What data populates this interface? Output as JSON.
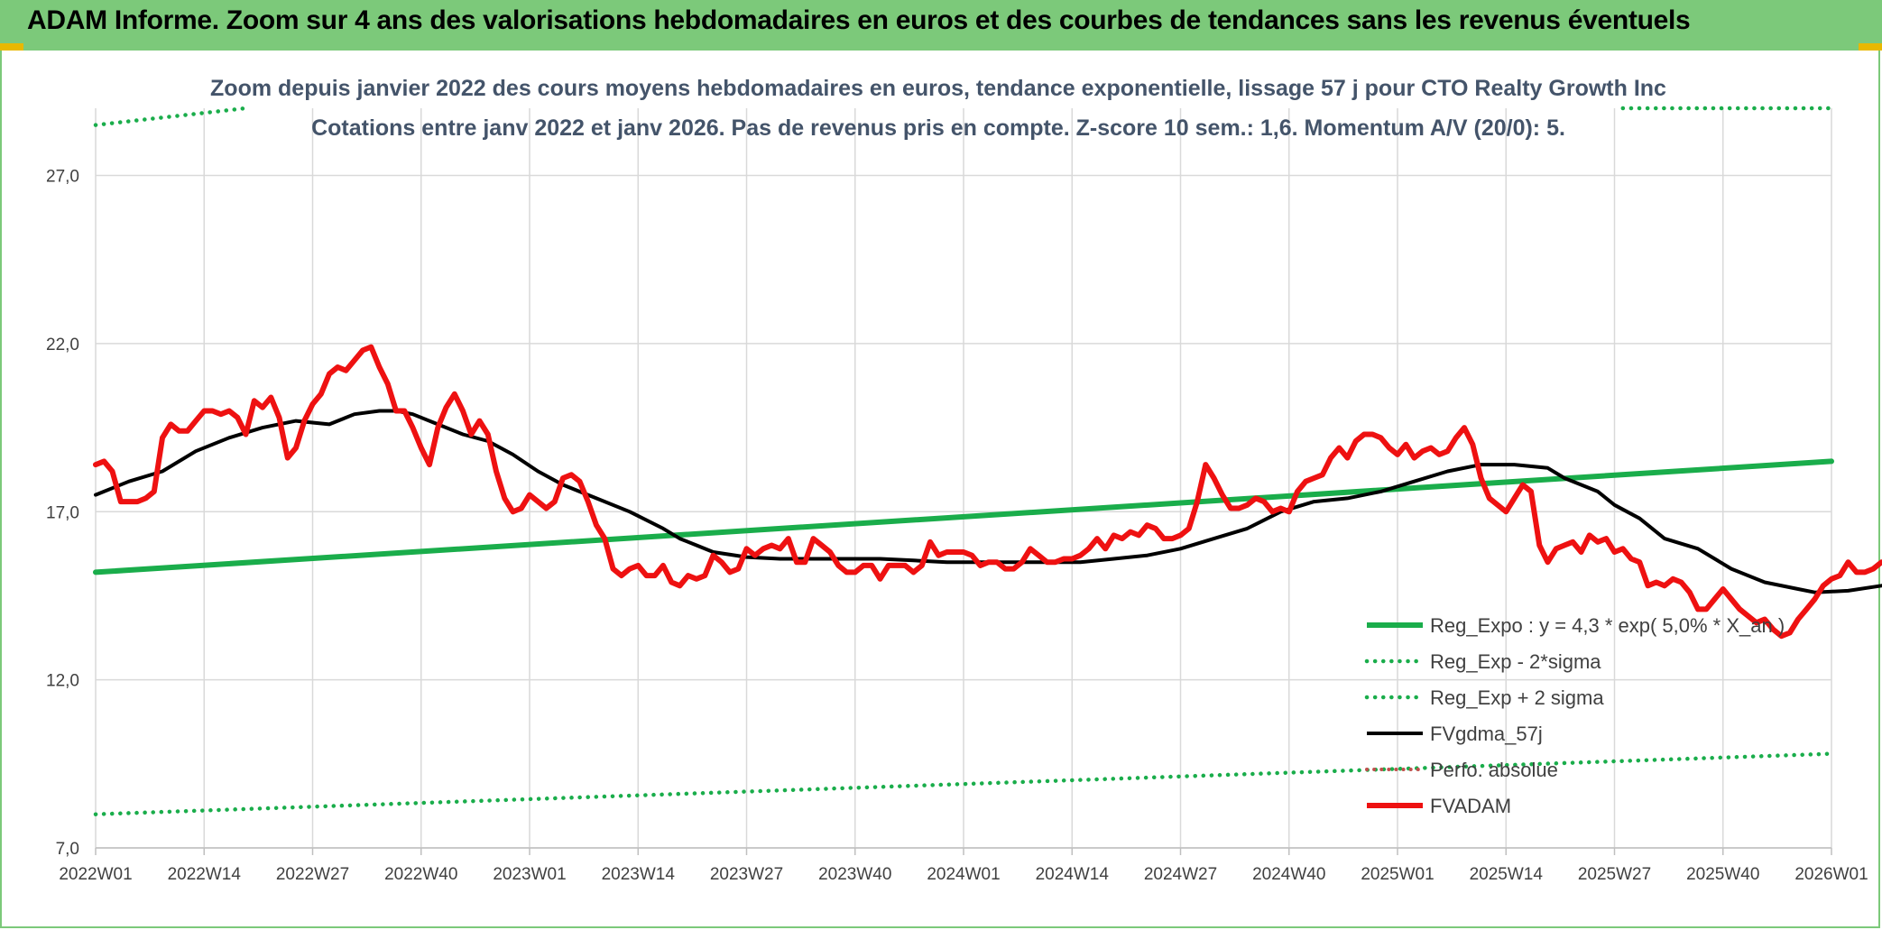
{
  "header": {
    "title": "ADAM Informe. Zoom sur 4 ans des valorisations hebdomadaires en euros et des courbes de tendances sans les revenus éventuels"
  },
  "colors": {
    "banner": "#7cc97a",
    "reg_expo": "#1aad4b",
    "sigma": "#1aad4b",
    "fvgdma": "#000000",
    "perfo": "#c0504d",
    "fvadam": "#ee1111",
    "grid": "#d9d9d9"
  },
  "chart_data": {
    "type": "line",
    "title": "Zoom depuis janvier 2022 des cours moyens hebdomadaires en euros, tendance exponentielle, lissage 57 j pour CTO Realty Growth Inc",
    "subtitle": "Cotations entre janv 2022 et janv 2026. Pas de revenus pris en compte. Z-score 10 sem.: 1,6. Momentum A/V (20/0): 5.",
    "xlabel": "",
    "ylabel": "",
    "ylim": [
      7.0,
      29.0
    ],
    "y_ticks": [
      "7,0",
      "12,0",
      "17,0",
      "22,0",
      "27,0"
    ],
    "x_ticks": [
      "2022W01",
      "2022W14",
      "2022W27",
      "2022W40",
      "2023W01",
      "2023W14",
      "2023W27",
      "2023W40",
      "2024W01",
      "2024W14",
      "2024W27",
      "2024W40",
      "2025W01",
      "2025W14",
      "2025W27",
      "2025W40",
      "2026W01"
    ],
    "x_range_weeks": [
      0,
      208
    ],
    "legend_position": "bottom-right",
    "series": [
      {
        "name": "Reg_Expo : y = 4,3 * exp( 5,0% * X_an )",
        "style": "solid-thick",
        "points": [
          [
            0,
            15.2
          ],
          [
            208,
            18.5
          ]
        ]
      },
      {
        "name": "Reg_Exp - 2*sigma",
        "style": "dotted",
        "points": [
          [
            0,
            8.0
          ],
          [
            208,
            9.8
          ]
        ]
      },
      {
        "name": "Reg_Exp + 2 sigma",
        "style": "dotted",
        "points": [
          [
            0,
            28.5
          ],
          [
            18,
            29.0
          ]
        ],
        "points2": [
          [
            183,
            29.0
          ],
          [
            208,
            29.0
          ]
        ]
      },
      {
        "name": "FVgdma_57j",
        "style": "solid",
        "points": [
          [
            0,
            17.5
          ],
          [
            4,
            17.9
          ],
          [
            8,
            18.2
          ],
          [
            12,
            18.8
          ],
          [
            16,
            19.2
          ],
          [
            20,
            19.5
          ],
          [
            24,
            19.7
          ],
          [
            28,
            19.6
          ],
          [
            31,
            19.9
          ],
          [
            34,
            20.0
          ],
          [
            36,
            20.0
          ],
          [
            38,
            19.9
          ],
          [
            41,
            19.6
          ],
          [
            44,
            19.3
          ],
          [
            47,
            19.1
          ],
          [
            50,
            18.7
          ],
          [
            53,
            18.2
          ],
          [
            56,
            17.8
          ],
          [
            60,
            17.4
          ],
          [
            64,
            17.0
          ],
          [
            68,
            16.5
          ],
          [
            70,
            16.2
          ],
          [
            72,
            16.0
          ],
          [
            74,
            15.8
          ],
          [
            78,
            15.65
          ],
          [
            82,
            15.6
          ],
          [
            86,
            15.6
          ],
          [
            90,
            15.6
          ],
          [
            94,
            15.6
          ],
          [
            98,
            15.55
          ],
          [
            102,
            15.5
          ],
          [
            106,
            15.5
          ],
          [
            110,
            15.5
          ],
          [
            114,
            15.5
          ],
          [
            118,
            15.5
          ],
          [
            122,
            15.6
          ],
          [
            126,
            15.7
          ],
          [
            130,
            15.9
          ],
          [
            134,
            16.2
          ],
          [
            138,
            16.5
          ],
          [
            142,
            17.0
          ],
          [
            146,
            17.3
          ],
          [
            150,
            17.4
          ],
          [
            154,
            17.6
          ],
          [
            158,
            17.9
          ],
          [
            162,
            18.2
          ],
          [
            166,
            18.4
          ],
          [
            170,
            18.4
          ],
          [
            174,
            18.3
          ],
          [
            176,
            18.0
          ],
          [
            180,
            17.6
          ],
          [
            182,
            17.2
          ],
          [
            185,
            16.8
          ],
          [
            188,
            16.2
          ],
          [
            192,
            15.9
          ],
          [
            196,
            15.3
          ],
          [
            200,
            14.9
          ],
          [
            204,
            14.7
          ],
          [
            206,
            14.6
          ],
          [
            210,
            14.65
          ],
          [
            214,
            14.8
          ],
          [
            218,
            15.0
          ],
          [
            222,
            15.3
          ]
        ]
      },
      {
        "name": "Perfo. absolue",
        "style": "dotted-red",
        "points": []
      },
      {
        "name": "FVADAM",
        "style": "solid-red-thick",
        "points": [
          [
            0,
            18.4
          ],
          [
            1,
            18.5
          ],
          [
            2,
            18.2
          ],
          [
            3,
            17.3
          ],
          [
            4,
            17.3
          ],
          [
            5,
            17.3
          ],
          [
            6,
            17.4
          ],
          [
            7,
            17.6
          ],
          [
            8,
            19.2
          ],
          [
            9,
            19.6
          ],
          [
            10,
            19.4
          ],
          [
            11,
            19.4
          ],
          [
            12,
            19.7
          ],
          [
            13,
            20.0
          ],
          [
            14,
            20.0
          ],
          [
            15,
            19.9
          ],
          [
            16,
            20.0
          ],
          [
            17,
            19.8
          ],
          [
            18,
            19.3
          ],
          [
            19,
            20.3
          ],
          [
            20,
            20.1
          ],
          [
            21,
            20.4
          ],
          [
            22,
            19.8
          ],
          [
            23,
            18.6
          ],
          [
            24,
            18.9
          ],
          [
            25,
            19.7
          ],
          [
            26,
            20.2
          ],
          [
            27,
            20.5
          ],
          [
            28,
            21.1
          ],
          [
            29,
            21.3
          ],
          [
            30,
            21.2
          ],
          [
            31,
            21.5
          ],
          [
            32,
            21.8
          ],
          [
            33,
            21.9
          ],
          [
            34,
            21.3
          ],
          [
            35,
            20.8
          ],
          [
            36,
            20.0
          ],
          [
            37,
            20.0
          ],
          [
            38,
            19.5
          ],
          [
            39,
            18.9
          ],
          [
            40,
            18.4
          ],
          [
            41,
            19.5
          ],
          [
            42,
            20.1
          ],
          [
            43,
            20.5
          ],
          [
            44,
            20.0
          ],
          [
            45,
            19.3
          ],
          [
            46,
            19.7
          ],
          [
            47,
            19.3
          ],
          [
            48,
            18.2
          ],
          [
            49,
            17.4
          ],
          [
            50,
            17.0
          ],
          [
            51,
            17.1
          ],
          [
            52,
            17.5
          ],
          [
            53,
            17.3
          ],
          [
            54,
            17.1
          ],
          [
            55,
            17.3
          ],
          [
            56,
            18.0
          ],
          [
            57,
            18.1
          ],
          [
            58,
            17.9
          ],
          [
            59,
            17.3
          ],
          [
            60,
            16.6
          ],
          [
            61,
            16.2
          ],
          [
            62,
            15.3
          ],
          [
            63,
            15.1
          ],
          [
            64,
            15.3
          ],
          [
            65,
            15.4
          ],
          [
            66,
            15.1
          ],
          [
            67,
            15.1
          ],
          [
            68,
            15.4
          ],
          [
            69,
            14.9
          ],
          [
            70,
            14.8
          ],
          [
            71,
            15.1
          ],
          [
            72,
            15.0
          ],
          [
            73,
            15.1
          ],
          [
            74,
            15.7
          ],
          [
            75,
            15.5
          ],
          [
            76,
            15.2
          ],
          [
            77,
            15.3
          ],
          [
            78,
            15.9
          ],
          [
            79,
            15.7
          ],
          [
            80,
            15.9
          ],
          [
            81,
            16.0
          ],
          [
            82,
            15.9
          ],
          [
            83,
            16.2
          ],
          [
            84,
            15.5
          ],
          [
            85,
            15.5
          ],
          [
            86,
            16.2
          ],
          [
            87,
            16.0
          ],
          [
            88,
            15.8
          ],
          [
            89,
            15.4
          ],
          [
            90,
            15.2
          ],
          [
            91,
            15.2
          ],
          [
            92,
            15.4
          ],
          [
            93,
            15.4
          ],
          [
            94,
            15.0
          ],
          [
            95,
            15.4
          ],
          [
            96,
            15.4
          ],
          [
            97,
            15.4
          ],
          [
            98,
            15.2
          ],
          [
            99,
            15.4
          ],
          [
            100,
            16.1
          ],
          [
            101,
            15.7
          ],
          [
            102,
            15.8
          ],
          [
            103,
            15.8
          ],
          [
            104,
            15.8
          ],
          [
            105,
            15.7
          ],
          [
            106,
            15.4
          ],
          [
            107,
            15.5
          ],
          [
            108,
            15.5
          ],
          [
            109,
            15.3
          ],
          [
            110,
            15.3
          ],
          [
            111,
            15.5
          ],
          [
            112,
            15.9
          ],
          [
            113,
            15.7
          ],
          [
            114,
            15.5
          ],
          [
            115,
            15.5
          ],
          [
            116,
            15.6
          ],
          [
            117,
            15.6
          ],
          [
            118,
            15.7
          ],
          [
            119,
            15.9
          ],
          [
            120,
            16.2
          ],
          [
            121,
            15.9
          ],
          [
            122,
            16.3
          ],
          [
            123,
            16.2
          ],
          [
            124,
            16.4
          ],
          [
            125,
            16.3
          ],
          [
            126,
            16.6
          ],
          [
            127,
            16.5
          ],
          [
            128,
            16.2
          ],
          [
            129,
            16.2
          ],
          [
            130,
            16.3
          ],
          [
            131,
            16.5
          ],
          [
            132,
            17.3
          ],
          [
            133,
            18.4
          ],
          [
            134,
            18.0
          ],
          [
            135,
            17.5
          ],
          [
            136,
            17.1
          ],
          [
            137,
            17.1
          ],
          [
            138,
            17.2
          ],
          [
            139,
            17.4
          ],
          [
            140,
            17.3
          ],
          [
            141,
            17.0
          ],
          [
            142,
            17.1
          ],
          [
            143,
            17.0
          ],
          [
            144,
            17.6
          ],
          [
            145,
            17.9
          ],
          [
            146,
            18.0
          ],
          [
            147,
            18.1
          ],
          [
            148,
            18.6
          ],
          [
            149,
            18.9
          ],
          [
            150,
            18.6
          ],
          [
            151,
            19.1
          ],
          [
            152,
            19.3
          ],
          [
            153,
            19.3
          ],
          [
            154,
            19.2
          ],
          [
            155,
            18.9
          ],
          [
            156,
            18.7
          ],
          [
            157,
            19.0
          ],
          [
            158,
            18.6
          ],
          [
            159,
            18.8
          ],
          [
            160,
            18.9
          ],
          [
            161,
            18.7
          ],
          [
            162,
            18.8
          ],
          [
            163,
            19.2
          ],
          [
            164,
            19.5
          ],
          [
            165,
            19.0
          ],
          [
            166,
            18.0
          ],
          [
            167,
            17.4
          ],
          [
            168,
            17.2
          ],
          [
            169,
            17.0
          ],
          [
            170,
            17.4
          ],
          [
            171,
            17.8
          ],
          [
            172,
            17.6
          ],
          [
            173,
            16.0
          ],
          [
            174,
            15.5
          ],
          [
            175,
            15.9
          ],
          [
            176,
            16.0
          ],
          [
            177,
            16.1
          ],
          [
            178,
            15.8
          ],
          [
            179,
            16.3
          ],
          [
            180,
            16.1
          ],
          [
            181,
            16.2
          ],
          [
            182,
            15.8
          ],
          [
            183,
            15.9
          ],
          [
            184,
            15.6
          ],
          [
            185,
            15.5
          ],
          [
            186,
            14.8
          ],
          [
            187,
            14.9
          ],
          [
            188,
            14.8
          ],
          [
            189,
            15.0
          ],
          [
            190,
            14.9
          ],
          [
            191,
            14.6
          ],
          [
            192,
            14.1
          ],
          [
            193,
            14.1
          ],
          [
            194,
            14.4
          ],
          [
            195,
            14.7
          ],
          [
            196,
            14.4
          ],
          [
            197,
            14.1
          ],
          [
            198,
            13.9
          ],
          [
            199,
            13.7
          ],
          [
            200,
            13.8
          ],
          [
            201,
            13.5
          ],
          [
            202,
            13.3
          ],
          [
            203,
            13.4
          ],
          [
            204,
            13.8
          ],
          [
            205,
            14.1
          ],
          [
            206,
            14.4
          ],
          [
            207,
            14.8
          ],
          [
            208,
            15.0
          ],
          [
            209,
            15.1
          ],
          [
            210,
            15.5
          ],
          [
            211,
            15.2
          ],
          [
            212,
            15.2
          ],
          [
            213,
            15.3
          ],
          [
            214,
            15.5
          ],
          [
            215,
            15.5
          ],
          [
            216,
            15.5
          ],
          [
            217,
            15.8
          ]
        ]
      }
    ]
  }
}
